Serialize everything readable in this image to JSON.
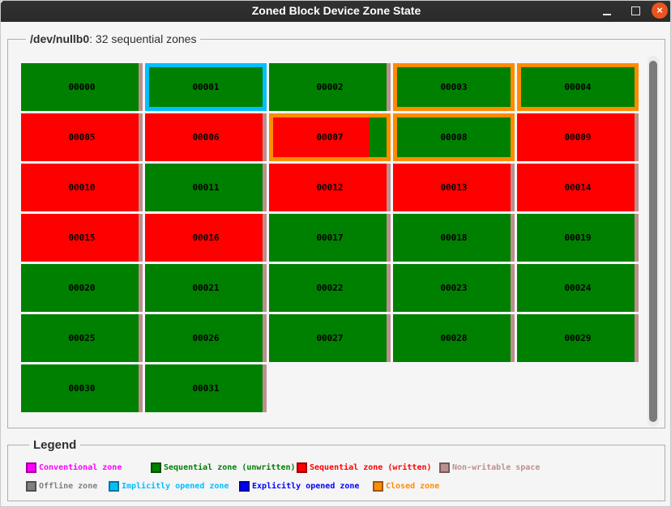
{
  "window": {
    "title": "Zoned Block Device Zone State",
    "controls": {
      "close_glyph": "×"
    }
  },
  "device_frame": {
    "label_bold": "/dev/nullb0",
    "label_rest": ": 32 sequential zones"
  },
  "colors": {
    "conventional": "#ff00ff",
    "seq_unwritten": "#008000",
    "seq_written": "#ff0000",
    "non_writable": "#bc8f8f",
    "offline": "#808080",
    "implicitly_opened": "#00bfff",
    "explicitly_opened": "#0000ff",
    "closed": "#ff8c00",
    "titlebar": "#2d2d2d",
    "close_button": "#e9541f"
  },
  "zones": [
    {
      "id": "00000",
      "state": "unwritten"
    },
    {
      "id": "00001",
      "state": "unwritten",
      "ring": "implicitly_opened"
    },
    {
      "id": "00002",
      "state": "unwritten"
    },
    {
      "id": "00003",
      "state": "unwritten",
      "ring": "closed"
    },
    {
      "id": "00004",
      "state": "unwritten",
      "ring": "closed"
    },
    {
      "id": "00005",
      "state": "written"
    },
    {
      "id": "00006",
      "state": "written"
    },
    {
      "id": "00007",
      "state": "partial",
      "written_pct": 85,
      "ring": "closed"
    },
    {
      "id": "00008",
      "state": "unwritten",
      "ring": "closed"
    },
    {
      "id": "00009",
      "state": "written"
    },
    {
      "id": "00010",
      "state": "written"
    },
    {
      "id": "00011",
      "state": "unwritten"
    },
    {
      "id": "00012",
      "state": "written"
    },
    {
      "id": "00013",
      "state": "written"
    },
    {
      "id": "00014",
      "state": "written"
    },
    {
      "id": "00015",
      "state": "written"
    },
    {
      "id": "00016",
      "state": "written"
    },
    {
      "id": "00017",
      "state": "unwritten"
    },
    {
      "id": "00018",
      "state": "unwritten"
    },
    {
      "id": "00019",
      "state": "unwritten"
    },
    {
      "id": "00020",
      "state": "unwritten"
    },
    {
      "id": "00021",
      "state": "unwritten"
    },
    {
      "id": "00022",
      "state": "unwritten"
    },
    {
      "id": "00023",
      "state": "unwritten"
    },
    {
      "id": "00024",
      "state": "unwritten"
    },
    {
      "id": "00025",
      "state": "unwritten"
    },
    {
      "id": "00026",
      "state": "unwritten"
    },
    {
      "id": "00027",
      "state": "unwritten"
    },
    {
      "id": "00028",
      "state": "unwritten"
    },
    {
      "id": "00029",
      "state": "unwritten"
    },
    {
      "id": "00030",
      "state": "unwritten"
    },
    {
      "id": "00031",
      "state": "unwritten"
    }
  ],
  "legend": {
    "title": "Legend",
    "rows": [
      [
        {
          "key": "conventional",
          "label": "Conventional zone",
          "color": "conventional"
        },
        {
          "key": "seq-unwritten",
          "label": "Sequential zone (unwritten)",
          "color": "seq_unwritten"
        },
        {
          "key": "seq-written",
          "label": "Sequential zone (written)",
          "color": "seq_written"
        },
        {
          "key": "non-writable",
          "label": "Non-writable space",
          "color": "non_writable"
        }
      ],
      [
        {
          "key": "offline",
          "label": "Offline zone",
          "color": "offline"
        },
        {
          "key": "implicitly-opened",
          "label": "Implicitly opened zone",
          "color": "implicitly_opened"
        },
        {
          "key": "explicitly-opened",
          "label": "Explicitly opened zone",
          "color": "explicitly_opened"
        },
        {
          "key": "closed",
          "label": "Closed zone",
          "color": "closed"
        }
      ]
    ]
  }
}
